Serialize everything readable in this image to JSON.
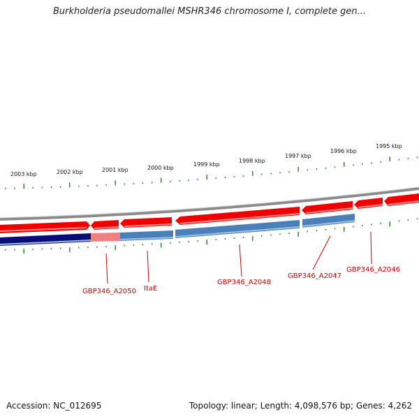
{
  "title": "Burkholderia pseudomallei MSHR346 chromosome I, complete gen...",
  "colors": {
    "backbone": "#888888",
    "forward_gene": "#ee0000",
    "reverse_gene": "#4a7fb8",
    "highlight": "#0a0a78",
    "tick": "#2a8a2a",
    "label": "#cc0000"
  },
  "ticks": {
    "top_labels": [
      "2003 kbp",
      "2002 kbp",
      "2001 kbp",
      "2000 kbp",
      "1999 kbp",
      "1998 kbp",
      "1997 kbp",
      "1996 kbp",
      "1995 kbp"
    ]
  },
  "genes": {
    "labels": [
      "GBP346_A2050",
      "ItaE",
      "GBP346_A2048",
      "GBP346_A2047",
      "GBP346_A2046"
    ]
  },
  "footer": {
    "accession": "Accession: NC_012695",
    "topology": "Topology: linear; Length: 4,098,576 bp; Genes: 4,262"
  }
}
